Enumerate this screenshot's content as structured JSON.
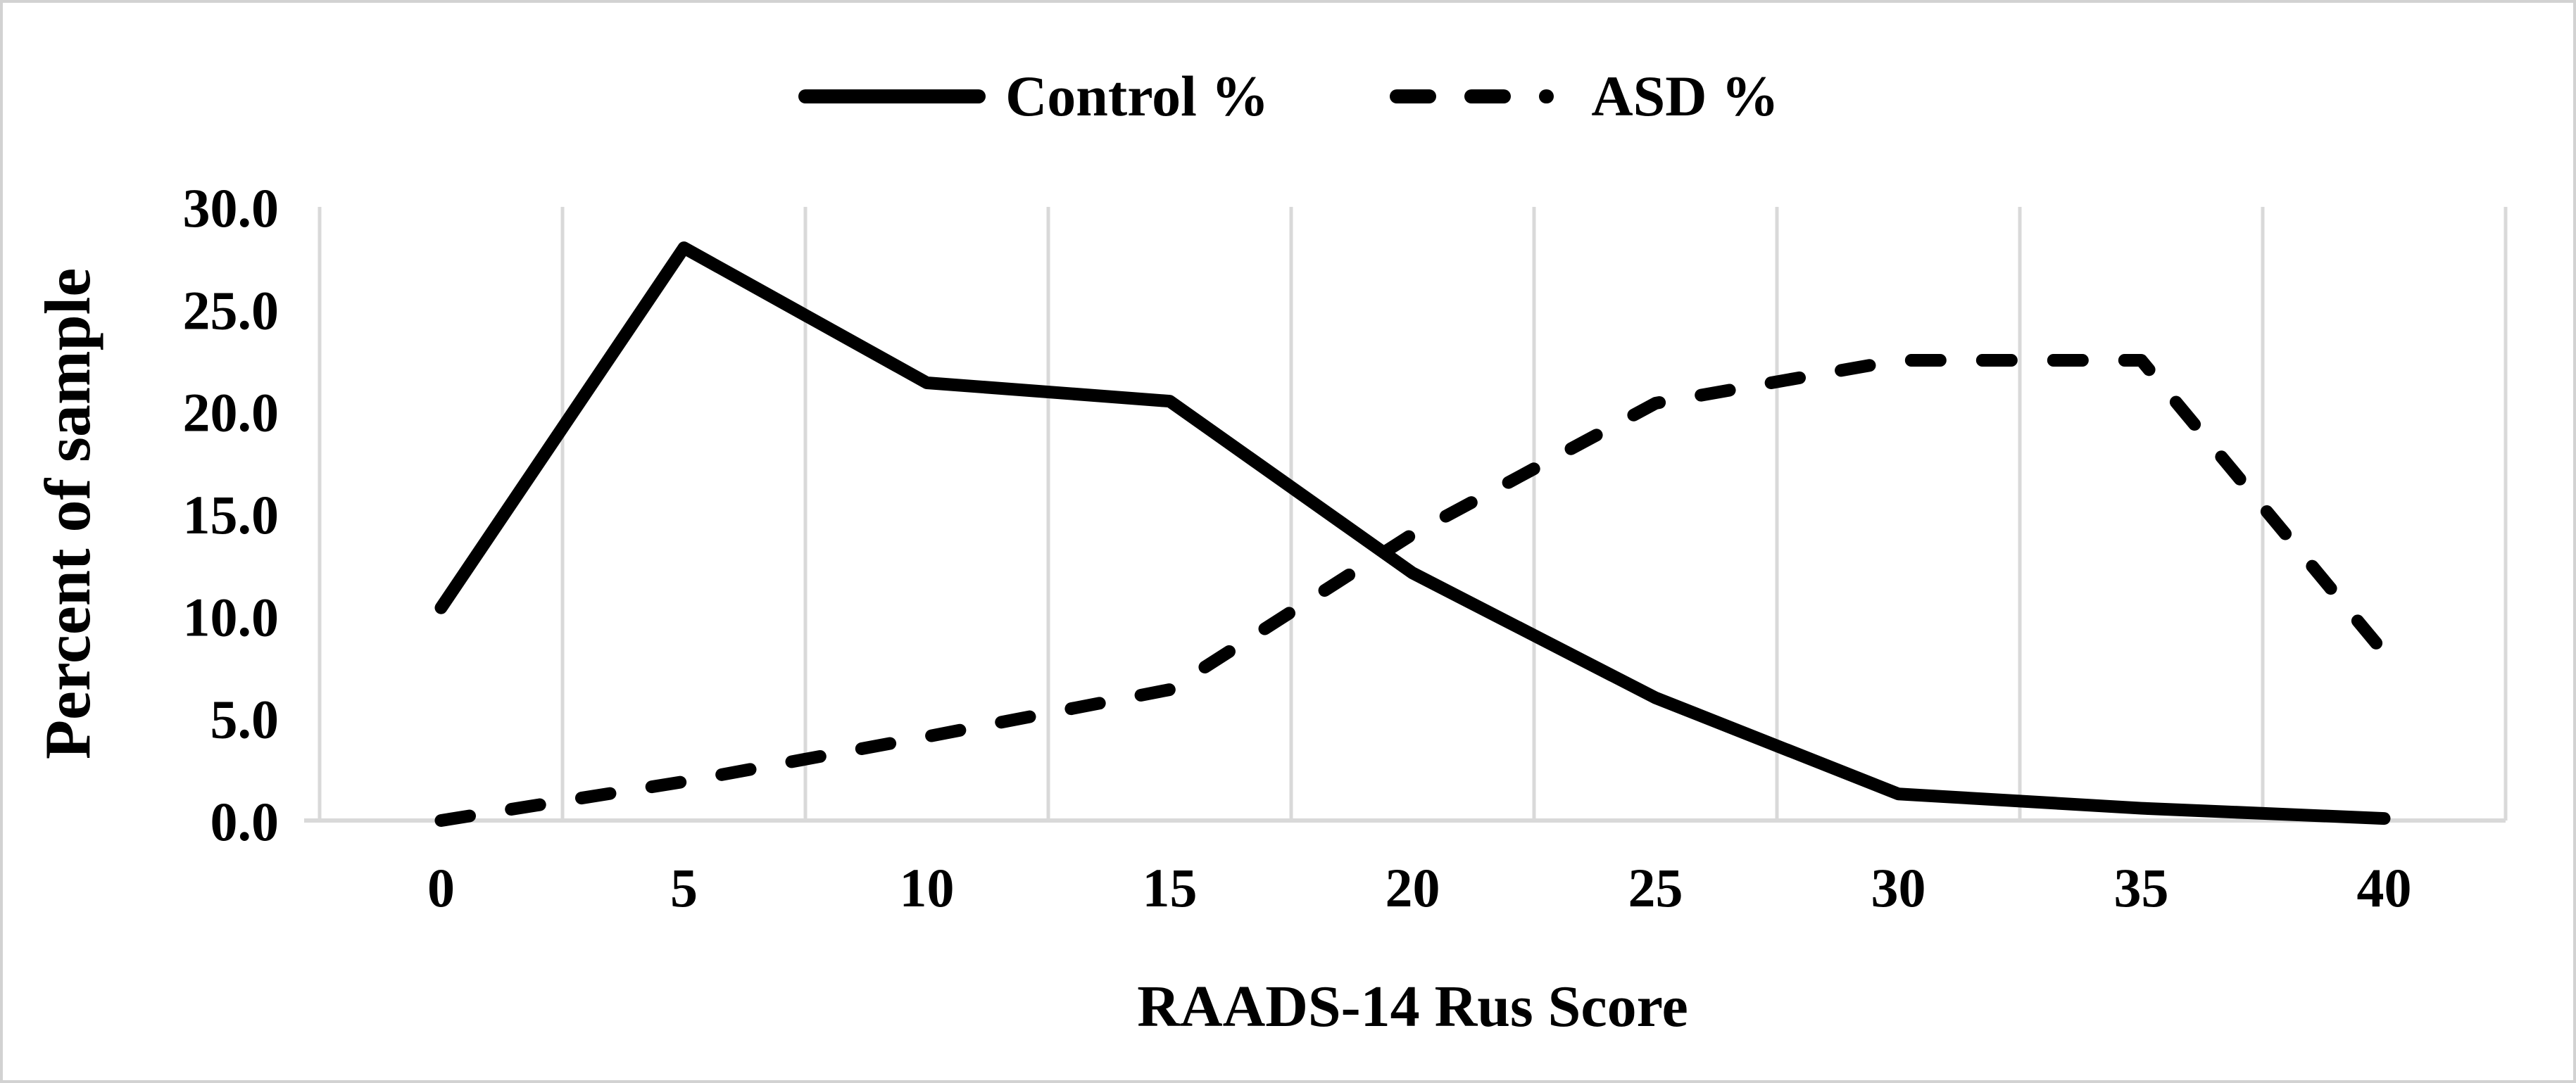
{
  "figure": {
    "background": "#ffffff",
    "border_color": "#d2d2d2"
  },
  "legend": {
    "position": "top-center",
    "items": [
      {
        "label": "Control %",
        "line_style": "solid",
        "color": "#000000"
      },
      {
        "label": "ASD %",
        "line_style": "dashed",
        "color": "#000000"
      }
    ]
  },
  "chart_data": {
    "type": "line",
    "title": "",
    "xlabel": "RAADS-14 Rus Score",
    "ylabel": "Percent of sample",
    "categories": [
      0,
      5,
      10,
      15,
      20,
      25,
      30,
      35,
      40
    ],
    "x_tick_labels": [
      "0",
      "5",
      "10",
      "15",
      "20",
      "25",
      "30",
      "35",
      "40"
    ],
    "y_ticks": [
      0,
      5,
      10,
      15,
      20,
      25,
      30
    ],
    "y_tick_labels": [
      "0.0",
      "5.0",
      "10.0",
      "15.0",
      "20.0",
      "25.0",
      "30.0"
    ],
    "ylim": [
      0,
      30
    ],
    "grid": "vertical-only",
    "gridline_color": "#d9d9d9",
    "axis_color": "#d9d9d9",
    "legend_position": "top-center",
    "series": [
      {
        "name": "Control %",
        "style": "solid",
        "color": "#000000",
        "values": [
          10.4,
          28.0,
          21.4,
          20.5,
          12.1,
          6.0,
          1.3,
          0.6,
          0.1
        ]
      },
      {
        "name": "ASD %",
        "style": "dashed",
        "color": "#000000",
        "values": [
          0.0,
          1.9,
          4.1,
          6.4,
          14.0,
          20.4,
          22.5,
          22.5,
          8.2
        ]
      }
    ]
  }
}
